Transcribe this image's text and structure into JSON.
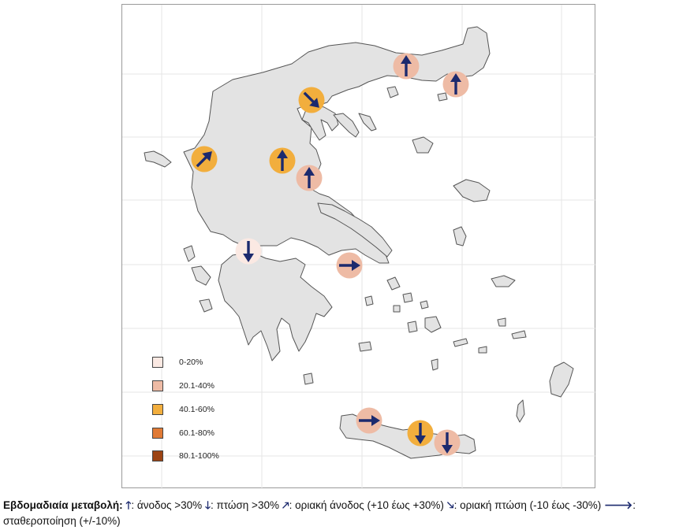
{
  "legend": {
    "items": [
      {
        "label": "0-20%",
        "color": "#fbe9e3"
      },
      {
        "label": "20.1-40%",
        "color": "#eebba5"
      },
      {
        "label": "40.1-60%",
        "color": "#f2ae3d"
      },
      {
        "label": "60.1-80%",
        "color": "#e07a35"
      },
      {
        "label": "80.1-100%",
        "color": "#9c4313"
      }
    ]
  },
  "markers": [
    {
      "id": "thrace-west",
      "color": "#eebba5",
      "arrow": "up"
    },
    {
      "id": "thrace-east",
      "color": "#eebba5",
      "arrow": "up"
    },
    {
      "id": "thessaloniki",
      "color": "#f2ae3d",
      "arrow": "down-right"
    },
    {
      "id": "epirus",
      "color": "#f2ae3d",
      "arrow": "up-right"
    },
    {
      "id": "thessaly",
      "color": "#f2ae3d",
      "arrow": "up"
    },
    {
      "id": "volos",
      "color": "#eebba5",
      "arrow": "up"
    },
    {
      "id": "patras",
      "color": "#fbe9e3",
      "arrow": "down"
    },
    {
      "id": "attica",
      "color": "#eebba5",
      "arrow": "right"
    },
    {
      "id": "crete-chania",
      "color": "#eebba5",
      "arrow": "right"
    },
    {
      "id": "crete-heraklion",
      "color": "#f2ae3d",
      "arrow": "down"
    },
    {
      "id": "crete-lasithi",
      "color": "#eebba5",
      "arrow": "down"
    }
  ],
  "colors": {
    "land": "#e3e3e3",
    "outline": "#555555",
    "arrow": "#1c2a6e",
    "grid": "#e6e6e6"
  },
  "caption": {
    "title": "Εβδομαδιαία μεταβολή:",
    "up_glyph": "🡑",
    "up_text": ": άνοδος >30%",
    "down_glyph": "🡓",
    "down_text": ": πτώση >30%",
    "slight_up_glyph": "🡕",
    "slight_up_text": ": οριακή άνοδος (+10 έως +30%)",
    "slight_down_glyph": "🡖",
    "slight_down_text": ": οριακή πτώση  (-10 έως -30%)",
    "stable_glyph": "🡒",
    "stable_text": ":  σταθεροποίηση (+/-10%)"
  }
}
